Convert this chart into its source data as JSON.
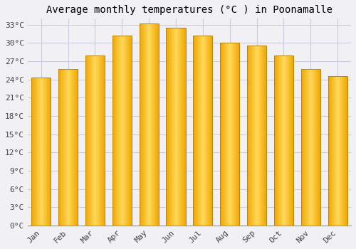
{
  "title": "Average monthly temperatures (°C ) in Poonamalle",
  "months": [
    "Jan",
    "Feb",
    "Mar",
    "Apr",
    "May",
    "Jun",
    "Jul",
    "Aug",
    "Sep",
    "Oct",
    "Nov",
    "Dec"
  ],
  "values": [
    24.3,
    25.7,
    28.0,
    31.2,
    33.2,
    32.5,
    31.2,
    30.1,
    29.6,
    28.0,
    25.7,
    24.5
  ],
  "bar_color_center": "#FFD95A",
  "bar_color_edge": "#F0A500",
  "ylim": [
    0,
    34
  ],
  "ytick_step": 3,
  "background_color": "#F0F0F5",
  "plot_bg_color": "#F0F0F5",
  "grid_color": "#CCCCDD",
  "title_fontsize": 10,
  "tick_fontsize": 8,
  "font_family": "monospace"
}
